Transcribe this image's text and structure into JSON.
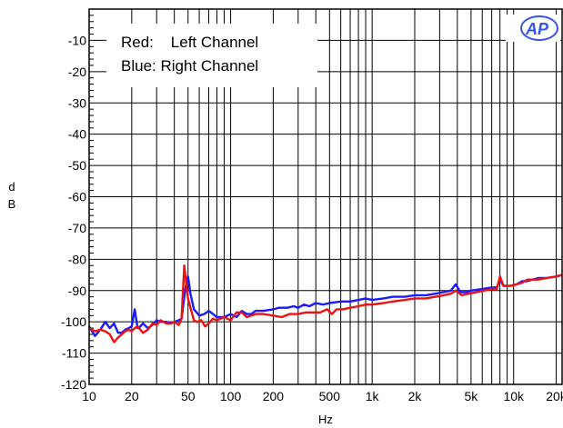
{
  "chart_data": {
    "type": "line",
    "title": "",
    "xlabel": "Hz",
    "ylabel": "dB",
    "xscale": "log",
    "xlim": [
      10,
      22000
    ],
    "ylim": [
      -120,
      0
    ],
    "grid": true,
    "x_ticks": [
      10,
      20,
      50,
      100,
      200,
      500,
      1000,
      2000,
      5000,
      10000,
      20000
    ],
    "x_tick_labels": [
      "10",
      "20",
      "50",
      "100",
      "200",
      "500",
      "1k",
      "2k",
      "5k",
      "10k",
      "20k"
    ],
    "y_ticks": [
      -120,
      -110,
      -100,
      -90,
      -80,
      -70,
      -60,
      -50,
      -40,
      -30,
      -20,
      -10
    ],
    "y_tick_labels": [
      "-120",
      "-110",
      "-100",
      "-90",
      "-80",
      "-70",
      "-60",
      "-50",
      "-40",
      "-30",
      "-20",
      "-10"
    ],
    "legend": {
      "placement": "top-left",
      "lines": [
        "Red:    Left Channel",
        "Blue: Right Channel"
      ]
    },
    "logo": "AP",
    "series": [
      {
        "color": "#1a1aff",
        "points": [
          [
            10,
            -101.5
          ],
          [
            11,
            -104.5
          ],
          [
            12,
            -102.5
          ],
          [
            13,
            -100
          ],
          [
            14,
            -102
          ],
          [
            15,
            -100.5
          ],
          [
            16,
            -103.5
          ],
          [
            17,
            -103.5
          ],
          [
            18,
            -102.5
          ],
          [
            19,
            -102
          ],
          [
            20,
            -101.5
          ],
          [
            21,
            -96
          ],
          [
            22,
            -102
          ],
          [
            23,
            -101.5
          ],
          [
            24,
            -100.5
          ],
          [
            26,
            -102
          ],
          [
            28,
            -101
          ],
          [
            30,
            -99.5
          ],
          [
            32,
            -100
          ],
          [
            35,
            -100
          ],
          [
            38,
            -100.5
          ],
          [
            40,
            -100
          ],
          [
            43,
            -99.5
          ],
          [
            45,
            -99
          ],
          [
            48,
            -89
          ],
          [
            50,
            -85.5
          ],
          [
            52,
            -91
          ],
          [
            55,
            -96
          ],
          [
            60,
            -98
          ],
          [
            65,
            -97.5
          ],
          [
            70,
            -96.5
          ],
          [
            75,
            -97.5
          ],
          [
            80,
            -98.5
          ],
          [
            90,
            -98.5
          ],
          [
            100,
            -97.5
          ],
          [
            110,
            -98.5
          ],
          [
            120,
            -96.5
          ],
          [
            130,
            -97.5
          ],
          [
            140,
            -97.5
          ],
          [
            150,
            -96.5
          ],
          [
            170,
            -96.5
          ],
          [
            200,
            -96
          ],
          [
            220,
            -95.5
          ],
          [
            250,
            -95.5
          ],
          [
            280,
            -95
          ],
          [
            300,
            -95.5
          ],
          [
            330,
            -94.5
          ],
          [
            360,
            -95
          ],
          [
            400,
            -94
          ],
          [
            450,
            -94.5
          ],
          [
            500,
            -94
          ],
          [
            600,
            -93.5
          ],
          [
            700,
            -93.5
          ],
          [
            800,
            -93
          ],
          [
            900,
            -92.5
          ],
          [
            1000,
            -93
          ],
          [
            1200,
            -92.5
          ],
          [
            1400,
            -92
          ],
          [
            1700,
            -92
          ],
          [
            2000,
            -91.5
          ],
          [
            2400,
            -91.5
          ],
          [
            2800,
            -91
          ],
          [
            3200,
            -90.5
          ],
          [
            3600,
            -90
          ],
          [
            3900,
            -88
          ],
          [
            4200,
            -90.5
          ],
          [
            4600,
            -90.5
          ],
          [
            5000,
            -90
          ],
          [
            6000,
            -89.5
          ],
          [
            7000,
            -89
          ],
          [
            7600,
            -89
          ],
          [
            8000,
            -86.5
          ],
          [
            8500,
            -88.5
          ],
          [
            9500,
            -88.5
          ],
          [
            10500,
            -88
          ],
          [
            11500,
            -87
          ],
          [
            12500,
            -87
          ],
          [
            13500,
            -86.5
          ],
          [
            15000,
            -86
          ],
          [
            17000,
            -86
          ],
          [
            20000,
            -85.5
          ],
          [
            22000,
            -85
          ]
        ]
      },
      {
        "color": "#ee1111",
        "points": [
          [
            10,
            -102
          ],
          [
            11,
            -103
          ],
          [
            12,
            -102.5
          ],
          [
            13,
            -103
          ],
          [
            14,
            -104
          ],
          [
            15,
            -106.5
          ],
          [
            16,
            -105
          ],
          [
            17,
            -104
          ],
          [
            18,
            -103
          ],
          [
            19,
            -102.5
          ],
          [
            20,
            -103
          ],
          [
            21,
            -102
          ],
          [
            22,
            -101.5
          ],
          [
            23,
            -102.5
          ],
          [
            24,
            -103.5
          ],
          [
            26,
            -102.5
          ],
          [
            28,
            -100.5
          ],
          [
            30,
            -101
          ],
          [
            32,
            -99.5
          ],
          [
            35,
            -100.5
          ],
          [
            38,
            -100.5
          ],
          [
            40,
            -100
          ],
          [
            43,
            -101
          ],
          [
            45,
            -99
          ],
          [
            47,
            -82
          ],
          [
            50,
            -92.5
          ],
          [
            52,
            -95.5
          ],
          [
            55,
            -99.5
          ],
          [
            58,
            -100
          ],
          [
            62,
            -99.5
          ],
          [
            66,
            -101.5
          ],
          [
            70,
            -100.5
          ],
          [
            75,
            -99
          ],
          [
            80,
            -99.5
          ],
          [
            90,
            -98.5
          ],
          [
            100,
            -99.5
          ],
          [
            110,
            -97
          ],
          [
            120,
            -97
          ],
          [
            130,
            -98.5
          ],
          [
            150,
            -97.5
          ],
          [
            170,
            -97.5
          ],
          [
            200,
            -98
          ],
          [
            230,
            -98.5
          ],
          [
            260,
            -97.5
          ],
          [
            300,
            -97.5
          ],
          [
            340,
            -97
          ],
          [
            380,
            -97
          ],
          [
            430,
            -97
          ],
          [
            480,
            -96
          ],
          [
            520,
            -97.5
          ],
          [
            560,
            -96
          ],
          [
            620,
            -96
          ],
          [
            700,
            -95.5
          ],
          [
            800,
            -95
          ],
          [
            900,
            -94.5
          ],
          [
            1000,
            -94.5
          ],
          [
            1200,
            -94
          ],
          [
            1400,
            -93.5
          ],
          [
            1700,
            -93
          ],
          [
            2000,
            -92.5
          ],
          [
            2400,
            -92.5
          ],
          [
            2800,
            -92
          ],
          [
            3200,
            -91.5
          ],
          [
            3600,
            -91
          ],
          [
            3900,
            -90
          ],
          [
            4300,
            -91.5
          ],
          [
            4800,
            -91
          ],
          [
            5500,
            -90.5
          ],
          [
            6200,
            -90
          ],
          [
            7000,
            -89.5
          ],
          [
            7600,
            -89.5
          ],
          [
            8000,
            -85.5
          ],
          [
            8500,
            -88.5
          ],
          [
            9500,
            -88.5
          ],
          [
            10500,
            -88
          ],
          [
            11500,
            -87.5
          ],
          [
            12500,
            -86.5
          ],
          [
            13500,
            -86.5
          ],
          [
            15000,
            -86.5
          ],
          [
            17000,
            -86
          ],
          [
            20000,
            -85.5
          ],
          [
            22000,
            -85
          ]
        ]
      }
    ]
  }
}
